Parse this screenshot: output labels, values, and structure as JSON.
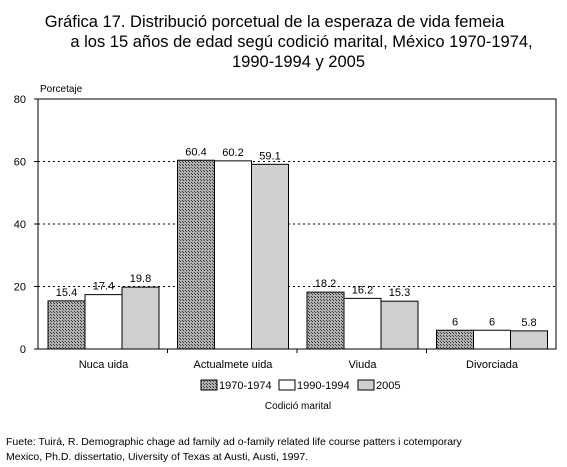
{
  "title": {
    "line1": "Gráfica 17. Distribució porcetual de la esperaza de vida femeia",
    "line2": "a los 15 años de edad segú codició marital, México 1970-1974,",
    "line3": "1990-1994 y 2005"
  },
  "source": {
    "line1": "Fuete: Tuirá, R. Demographic chage ad family ad o-family related life course patters i cotemporary",
    "line2": "Mexico, Ph.D. dissertatio, Uiversity of Texas at Austi, Austi, 1997."
  },
  "colors": {
    "series_1970": "#8c8c8c",
    "series_1990": "#ffffff",
    "series_2005": "#cfcfcf"
  },
  "chart_data": {
    "type": "bar",
    "title": "Gráfica 17. Distribució porcetual de la esperaza de vida femeia a los 15 años de edad segú codició marital, México 1970-1974, 1990-1994 y 2005",
    "ylabel": "Porcetaje",
    "xlabel": "Codició marital",
    "ylim": [
      0,
      80
    ],
    "yticks": [
      0,
      20,
      40,
      60,
      80
    ],
    "grid": true,
    "legend": "bottom",
    "categories": [
      "Nuca uida",
      "Actualmete uida",
      "Viuda",
      "Divorciada"
    ],
    "series": [
      {
        "name": "1970-1974",
        "values": [
          15.4,
          60.4,
          18.2,
          6
        ]
      },
      {
        "name": "1990-1994",
        "values": [
          17.4,
          60.2,
          16.2,
          6
        ]
      },
      {
        "name": "2005",
        "values": [
          19.8,
          59.1,
          15.3,
          5.8
        ]
      }
    ]
  }
}
